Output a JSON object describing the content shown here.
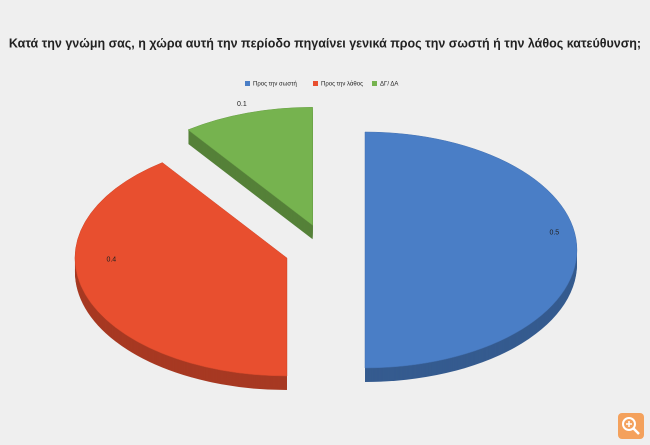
{
  "chart_data": {
    "type": "pie",
    "title": "Κατά την γνώμη σας, η χώρα αυτή την περίοδο πηγαίνει γενικά προς την σωστή ή την λάθος κατεύθυνση;",
    "categories": [
      "Προς την σωστή",
      "Προς την λάθος",
      "ΔΓ/ ΔΑ"
    ],
    "values": [
      0.5,
      0.4,
      0.1
    ],
    "colors": [
      "#4a7ec6",
      "#e84f2f",
      "#76b34f"
    ],
    "legend": "top"
  }
}
